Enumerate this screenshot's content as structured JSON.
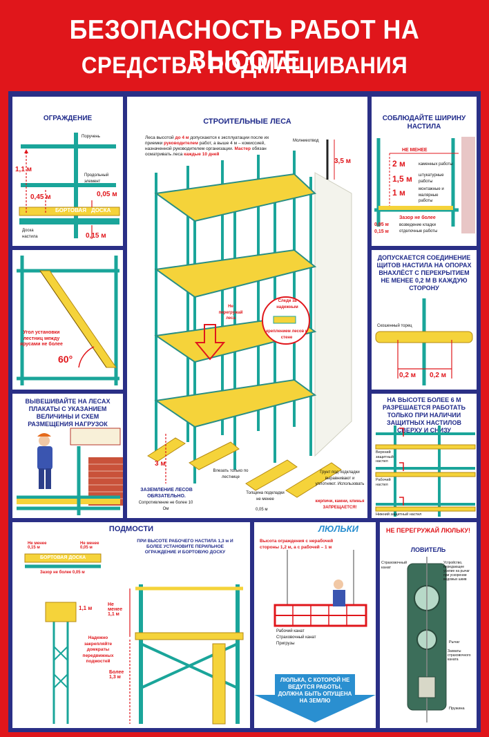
{
  "header": {
    "title": "БЕЗОПАСНОСТЬ РАБОТ НА ВЫСОТЕ",
    "subtitle": "СРЕДСТВА ПОДМАЩИВАНИЯ"
  },
  "colors": {
    "background": "#e0161b",
    "frame": "#2a2f86",
    "scaffold": "#1aa59a",
    "deck": "#f5d33a",
    "accent": "#e0161b"
  },
  "panels": {
    "guardrail": {
      "title": "ОГРАЖДЕНИЕ",
      "labels": [
        "Поручень",
        "Продольный элемент",
        "Доска настила"
      ],
      "board_label": "БОРТОВАЯ",
      "board_label2": "ДОСКА",
      "dims": [
        "1,1 м",
        "0,45 м",
        "0,05 м",
        "0,15 м"
      ]
    },
    "ladder": {
      "note": "Угол установки лестниц между ярусами не более",
      "angle": "60°"
    },
    "loads": {
      "title": "ВЫВЕШИВАЙТЕ НА ЛЕСАХ ПЛАКАТЫ С УКАЗАНИЕМ ВЕЛИЧИНЫ И СХЕМ РАЗМЕЩЕНИЯ НАГРУЗОК"
    },
    "main": {
      "title": "СТРОИТЕЛЬНЫЕ ЛЕСА",
      "intro_a": "Леса высотой ",
      "intro_b": "до 4 м",
      "intro_c": " допускаются к эксплуатации после их приемки ",
      "intro_d": "руководителем",
      "intro_e": " работ, а выше 4 м – комиссией, назначенной руководителем организации. ",
      "intro_f": "Мастер",
      "intro_g": " обязан осматривать леса ",
      "intro_h": "каждые 10 дней",
      "lightning": "Молниеотвод",
      "dim_35": "3,5 м",
      "dim_3": "3 м",
      "no_overload": "Не перегружай леса",
      "watch": "Следи за надежным",
      "anchor": "креплением лесов к стене",
      "ground_label": "ЗАЗЕМЛЕНИЕ ЛЕСОВ ОБЯЗАТЕЛЬНО.",
      "ground_note": "Сопротивление не более 10 Ом",
      "ladder_note": "Влезать только по лестнице",
      "pad_note": "Толщина подкладки не менее",
      "pad_value": "0,05 м",
      "soil_note": "Грунт под подкладки выравнивают и уплотняют. Использовать",
      "soil_red": "кирпичи, камни, клинья ЗАПРЕЩАЕТСЯ!"
    },
    "width": {
      "title": "СОБЛЮДАЙТЕ ШИРИНУ НАСТИЛА",
      "min": "НЕ МЕНЕЕ",
      "rows": [
        {
          "value": "2 м",
          "label": "каменных работы"
        },
        {
          "value": "1,5 м",
          "label": "штукатурные работы"
        },
        {
          "value": "1 м",
          "label": "монтажные и малярные работы"
        }
      ],
      "gap": "Зазор не более",
      "gap_note": "возведение кладки отделочные работы",
      "gap_values": [
        "0,05 м",
        "0,15 м"
      ]
    },
    "overlap": {
      "title": "ДОПУСКАЕТСЯ СОЕДИНЕНИЕ ЩИТОВ НАСТИЛА НА ОПОРАХ ВНАХЛЁСТ С ПЕРЕКРЫТИЕМ НЕ МЕНЕЕ 0,2 М В КАЖДУЮ СТОРОНУ",
      "label": "Скошенный торец",
      "dims": [
        "0,2 м",
        "0,2 м"
      ]
    },
    "protect": {
      "title": "НА ВЫСОТЕ БОЛЕЕ 6 М РАЗРЕШАЕТСЯ РАБОТАТЬ ТОЛЬКО ПРИ НАЛИЧИИ ЗАЩИТНЫХ НАСТИЛОВ СВЕРХУ И СНИЗУ",
      "labels": [
        "Верхний защитный настил",
        "Рабочий настил",
        "Нижний защитный настил"
      ]
    },
    "platforms": {
      "title": "ПОДМОСТИ",
      "rule": "ПРИ ВЫСОТЕ РАБОЧЕГО НАСТИЛА 1,3 м И БОЛЕЕ УСТАНОВИТЕ ПЕРИЛЬНОЕ ОГРАЖДЕНИЕ И БОРТОВУЮ ДОСКУ",
      "dims": [
        "Не менее 0,15 м",
        "Не менее 0,05 м",
        "Зазор не более 0,05 м",
        "1,1 м",
        "Не менее 1,1 м",
        "Более 1,3 м"
      ],
      "board": "БОРТОВАЯ ДОСКА",
      "note": "Надежно закрепляйте домкраты передвижных подмостей"
    },
    "cradles": {
      "title": "ЛЮЛЬКИ",
      "note": "Высота ограждения с нерабочей стороны 1,2 м, а с рабочей – 1 м",
      "labels": [
        "Рабочий канат",
        "Страховочный канат",
        "Пригрузы"
      ],
      "arrow": "ЛЮЛЬКА, С КОТОРОЙ НЕ ВЕДУТСЯ РАБОТЫ, ДОЛЖНА БЫТЬ ОПУЩЕНА НА ЗЕМЛЮ"
    },
    "catcher": {
      "title": "НЕ ПЕРЕГРУЖАЙ ЛЮЛЬКУ!",
      "subtitle": "ЛОВИТЕЛЬ",
      "labels": [
        "Страховочный канат",
        "Устройство, передающее усилие на рычаг при ускорении ведомых шкив",
        "Рычаг",
        "Захваты страховочного каната",
        "Пружина"
      ]
    }
  }
}
